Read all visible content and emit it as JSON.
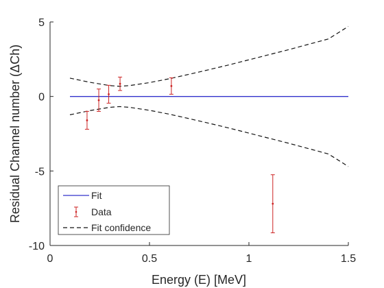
{
  "chart_data": {
    "type": "scatter",
    "xlabel": "Energy (E) [MeV]",
    "ylabel": "Residual Channel number (ΔCh)",
    "xlim": [
      0,
      1.5
    ],
    "ylim": [
      -10,
      5
    ],
    "xticks": [
      0,
      0.5,
      1,
      1.5
    ],
    "xtick_labels": [
      "0",
      "0.5",
      "1",
      "1.5"
    ],
    "yticks": [
      -10,
      -5,
      0,
      5
    ],
    "ytick_labels": [
      "-10",
      "-5",
      "0",
      "5"
    ],
    "grid": false,
    "legend_position": "bottom-left",
    "series": [
      {
        "name": "Fit",
        "kind": "line",
        "color": "#3333cc",
        "style": "solid",
        "x": [
          0.1,
          1.5
        ],
        "y": [
          0,
          0
        ]
      },
      {
        "name": "Data",
        "kind": "errorbar",
        "color": "#cc2222",
        "x": [
          0.186,
          0.245,
          0.295,
          0.352,
          0.61,
          1.12
        ],
        "y": [
          -1.6,
          -0.25,
          0.15,
          0.85,
          0.7,
          -7.2
        ],
        "err": [
          0.6,
          0.75,
          0.6,
          0.45,
          0.55,
          1.95
        ]
      },
      {
        "name": "Fit confidence",
        "kind": "band",
        "color": "#111111",
        "style": "dashed",
        "x": [
          0.1,
          0.2,
          0.3,
          0.35,
          0.4,
          0.5,
          0.6,
          0.7,
          0.8,
          0.9,
          1.0,
          1.1,
          1.2,
          1.3,
          1.4,
          1.5
        ],
        "upper": [
          1.23,
          0.95,
          0.73,
          0.68,
          0.73,
          0.93,
          1.19,
          1.49,
          1.8,
          2.12,
          2.46,
          2.8,
          3.14,
          3.5,
          3.86,
          4.7
        ],
        "lower": [
          -1.23,
          -0.95,
          -0.73,
          -0.68,
          -0.73,
          -0.93,
          -1.19,
          -1.49,
          -1.8,
          -2.12,
          -2.46,
          -2.8,
          -3.14,
          -3.5,
          -3.86,
          -4.7
        ]
      }
    ]
  }
}
